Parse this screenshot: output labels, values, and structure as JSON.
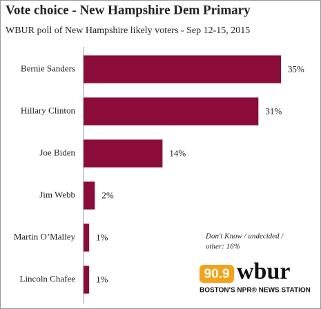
{
  "chart_data": {
    "type": "bar",
    "orientation": "horizontal",
    "title": "Vote choice - New Hampshire Dem Primary",
    "subtitle": "WBUR poll of New Hampshire likely voters - Sep 12-15, 2015",
    "categories": [
      "Bernie Sanders",
      "Hillary Clinton",
      "Joe Biden",
      "Jim Webb",
      "Martin O’Malley",
      "Lincoln Chafee"
    ],
    "values": [
      35,
      31,
      14,
      2,
      1,
      1
    ],
    "value_labels": [
      "35%",
      "31%",
      "14%",
      "2%",
      "1%",
      "1%"
    ],
    "color": "#8b0c3a",
    "xlim": [
      0,
      35
    ],
    "annotation": [
      "Don't Know / undecided /",
      "other: 16%"
    ],
    "logo": {
      "frequency": "90.9",
      "name": "wbur",
      "tagline": "BOSTON'S NPR® NEWS STATION"
    }
  }
}
